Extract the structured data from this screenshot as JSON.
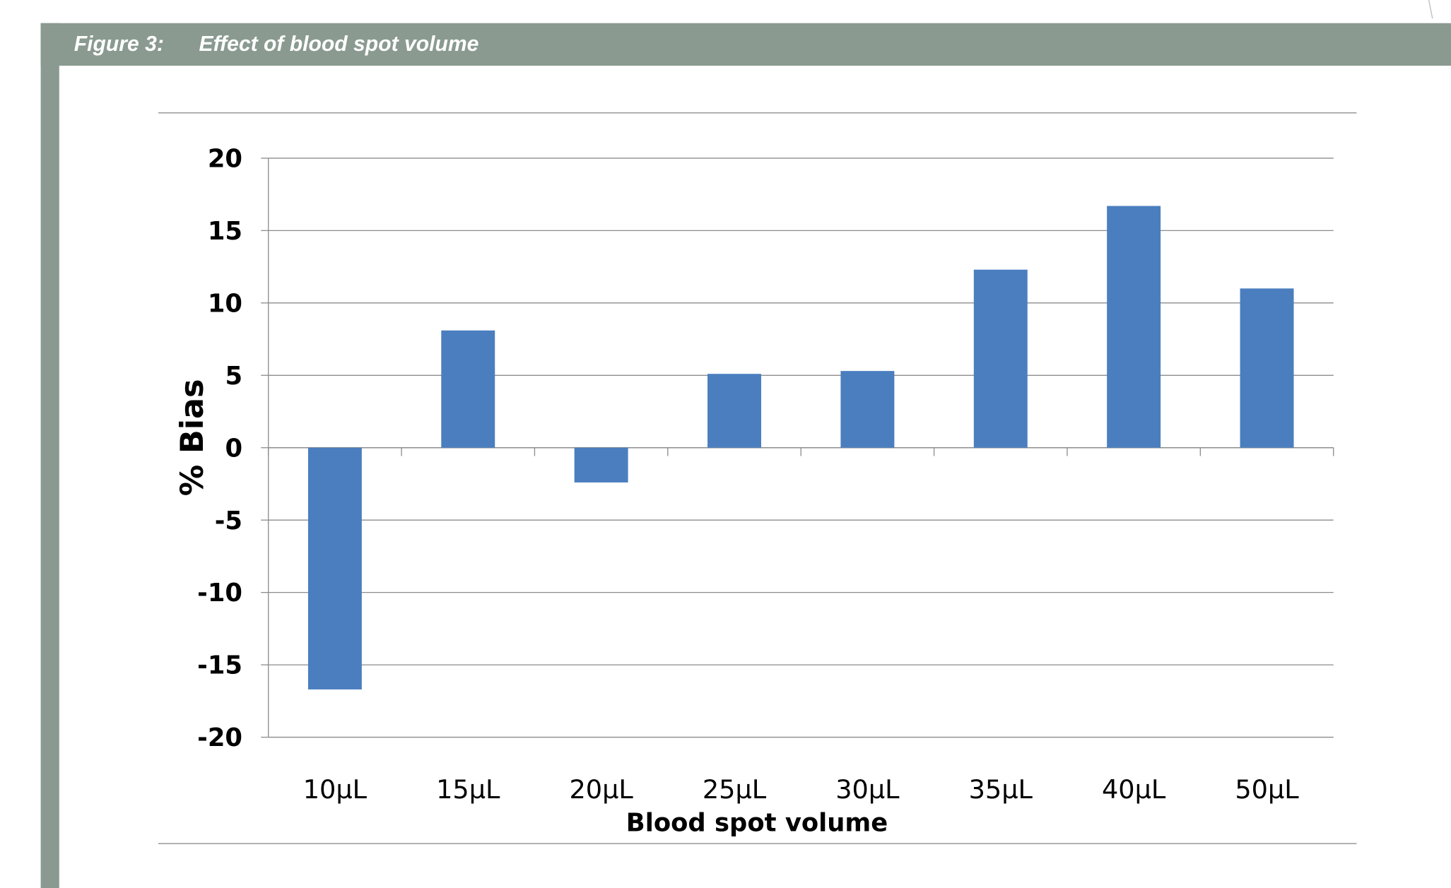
{
  "chart_data": {
    "type": "bar",
    "figure_label": "Figure 3:",
    "title": "Effect of blood spot volume",
    "x_label": "Blood spot volume",
    "y_label": "% Bias",
    "categories": [
      "10µL",
      "15µL",
      "20µL",
      "25µL",
      "30µL",
      "35µL",
      "40µL",
      "50µL"
    ],
    "values": [
      -16.7,
      8.1,
      -2.4,
      5.1,
      5.3,
      12.3,
      16.7,
      11.0
    ],
    "color": "#4a7ebf",
    "ylim": [
      -20,
      20
    ],
    "yticks": [
      -20,
      -15,
      -10,
      -5,
      0,
      5,
      10,
      15,
      20
    ],
    "grid": true
  }
}
